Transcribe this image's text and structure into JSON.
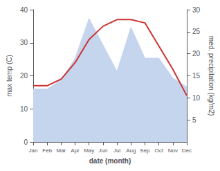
{
  "chart_data": {
    "type": "line",
    "categories": [
      "Jan",
      "Feb",
      "Mar",
      "Apr",
      "May",
      "Jun",
      "Jul",
      "Aug",
      "Sep",
      "Oct",
      "Nov",
      "Dec"
    ],
    "series": [
      {
        "type": "area",
        "axis": "y2",
        "color": "#c5d5ee",
        "values": [
          12.0,
          12.0,
          14.0,
          19.0,
          28.0,
          22.0,
          16.0,
          26.0,
          19.0,
          19.0,
          14.5,
          12.5
        ]
      },
      {
        "type": "line",
        "color": "#cc3333",
        "values": [
          17.0,
          17.0,
          19.0,
          24.0,
          31.0,
          35.0,
          37.0,
          37.0,
          36.0,
          29.0,
          22.0,
          14.0
        ]
      }
    ],
    "xlabel": "date (month)",
    "ylabel": "max temp (C)",
    "y2label": "med. precipitation (kg/m2)",
    "ylim": [
      0,
      40
    ],
    "yticks": [
      0,
      10,
      20,
      30,
      40
    ],
    "y2lim": [
      0,
      30
    ],
    "y2ticks": [
      5,
      10,
      15,
      20,
      25,
      30
    ],
    "grid": false
  }
}
